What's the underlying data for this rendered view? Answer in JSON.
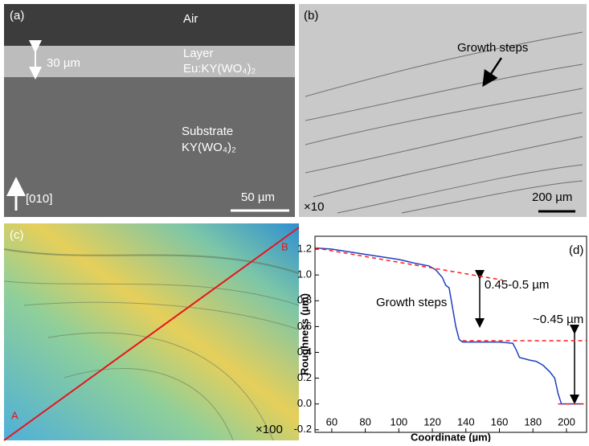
{
  "panels": {
    "a": {
      "label": "(a)",
      "air": "Air",
      "layer": "Layer",
      "layer_formula": "Eu:KY(WO₄)₂",
      "thickness": "30 µm",
      "substrate": "Substrate",
      "substrate_formula": "KY(WO₄)₂",
      "direction": "[010]",
      "scale": "50 µm"
    },
    "b": {
      "label": "(b)",
      "annotation": "Growth steps",
      "magnification": "×10",
      "scale": "200 µm"
    },
    "c": {
      "label": "(c)",
      "start": "A",
      "end": "B",
      "magnification": "×100"
    }
  },
  "chart_data": {
    "type": "line",
    "panel_label": "(d)",
    "xlabel": "Coordinate (µm)",
    "ylabel": "Roughness (µm)",
    "annotations": [
      "Growth steps",
      "0.45-0.5 µm",
      "~0.45 µm"
    ],
    "xlim": [
      50,
      212
    ],
    "ylim": [
      -0.22,
      1.3
    ],
    "xticks": [
      60,
      80,
      100,
      120,
      140,
      160,
      180,
      200
    ],
    "yticks": [
      -0.2,
      {
        "value": 0,
        "label": "0.0"
      },
      0.2,
      0.4,
      0.6,
      0.8,
      {
        "value": 1,
        "label": "1.0"
      },
      1.2
    ],
    "series": [
      {
        "color": "#1f3fbf",
        "style": "solid",
        "x": [
          50,
          60,
          80,
          100,
          110,
          118,
          122,
          126,
          128,
          130,
          132,
          134,
          136,
          138,
          150,
          160,
          168,
          170,
          172,
          178,
          182,
          186,
          190,
          193,
          195,
          197,
          200,
          210
        ],
        "values": [
          1.21,
          1.2,
          1.16,
          1.12,
          1.09,
          1.07,
          1.04,
          0.98,
          0.92,
          0.9,
          0.75,
          0.6,
          0.5,
          0.48,
          0.48,
          0.48,
          0.47,
          0.42,
          0.36,
          0.34,
          0.33,
          0.3,
          0.25,
          0.2,
          0.08,
          0,
          0,
          0
        ]
      },
      {
        "color": "#ff1a1a",
        "style": "dashed",
        "x": [
          50,
          162
        ],
        "values": [
          1.21,
          0.96
        ]
      },
      {
        "color": "#ff1a1a",
        "style": "dashed",
        "x": [
          138,
          212
        ],
        "values": [
          0.49,
          0.49
        ]
      },
      {
        "color": "#ff1a1a",
        "style": "dashed",
        "x": [
          195,
          212
        ],
        "values": [
          0,
          0
        ]
      }
    ]
  }
}
